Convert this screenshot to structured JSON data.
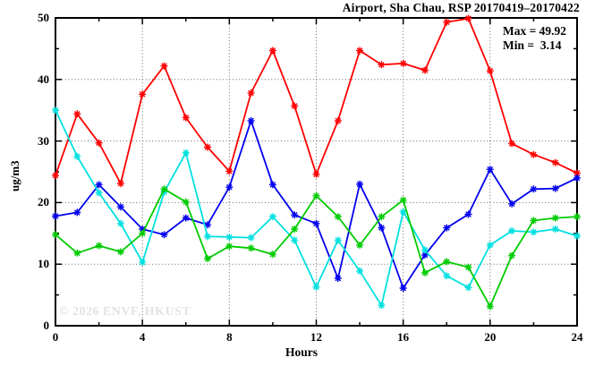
{
  "header": {
    "title": "Airport, Sha Chau, RSP 20170419–20170422"
  },
  "annotation": {
    "max_label": "Max = 49.92",
    "min_label": "Min =  3.14"
  },
  "watermark": "© 2026 ENVF, HKUST",
  "chart_data": {
    "type": "line",
    "title": "Airport, Sha Chau, RSP 20170419–20170422",
    "xlabel": "Hours",
    "ylabel": "ug/m3",
    "xlim": [
      0,
      24
    ],
    "ylim": [
      0,
      50
    ],
    "x_major_ticks": [
      0,
      4,
      8,
      12,
      16,
      20,
      24
    ],
    "x_minor_ticks": [
      2,
      6,
      10,
      14,
      18,
      22
    ],
    "y_major_ticks": [
      0,
      10,
      20,
      30,
      40,
      50
    ],
    "y_minor_ticks": [
      5,
      15,
      25,
      35,
      45
    ],
    "grid": "dotted-at-major-ticks",
    "legend_position": "none",
    "marker": "asterisk",
    "stats": {
      "max": 49.92,
      "min": 3.14
    },
    "x": [
      0,
      1,
      2,
      3,
      4,
      5,
      6,
      7,
      8,
      9,
      10,
      11,
      12,
      13,
      14,
      15,
      16,
      17,
      18,
      19,
      20,
      21,
      22,
      23,
      24
    ],
    "series": [
      {
        "name": "series-red",
        "color": "#ff0000",
        "values": [
          24.4,
          34.4,
          29.7,
          23.1,
          37.6,
          42.2,
          33.8,
          29.0,
          25.1,
          37.8,
          44.7,
          35.7,
          24.6,
          33.3,
          44.7,
          42.4,
          42.6,
          41.5,
          49.3,
          49.92,
          41.4,
          29.6,
          27.8,
          26.5,
          24.8
        ]
      },
      {
        "name": "series-blue",
        "color": "#0000ee",
        "values": [
          17.8,
          18.4,
          22.9,
          19.3,
          15.7,
          14.8,
          17.5,
          16.4,
          22.5,
          33.3,
          22.9,
          18.0,
          16.6,
          7.7,
          23.0,
          15.9,
          6.1,
          11.5,
          15.9,
          18.1,
          25.4,
          19.8,
          22.2,
          22.3,
          24.0
        ]
      },
      {
        "name": "series-cyan",
        "color": "#00e0e0",
        "values": [
          35.0,
          27.5,
          21.6,
          16.6,
          10.3,
          21.7,
          28.1,
          14.5,
          14.4,
          14.3,
          17.7,
          13.9,
          6.3,
          13.9,
          8.9,
          3.3,
          18.5,
          12.3,
          8.1,
          6.2,
          13.1,
          15.4,
          15.2,
          15.7,
          14.6
        ]
      },
      {
        "name": "series-green",
        "color": "#00cc00",
        "values": [
          14.8,
          11.8,
          13.0,
          12.0,
          15.0,
          22.2,
          20.1,
          10.9,
          12.9,
          12.6,
          11.6,
          15.7,
          21.1,
          17.7,
          13.1,
          17.7,
          20.4,
          8.6,
          10.4,
          9.5,
          3.14,
          11.4,
          17.1,
          17.5,
          17.7
        ]
      }
    ]
  },
  "layout_colors": {
    "frame": "#000000",
    "grid": "#666666",
    "background": "#ffffff"
  }
}
